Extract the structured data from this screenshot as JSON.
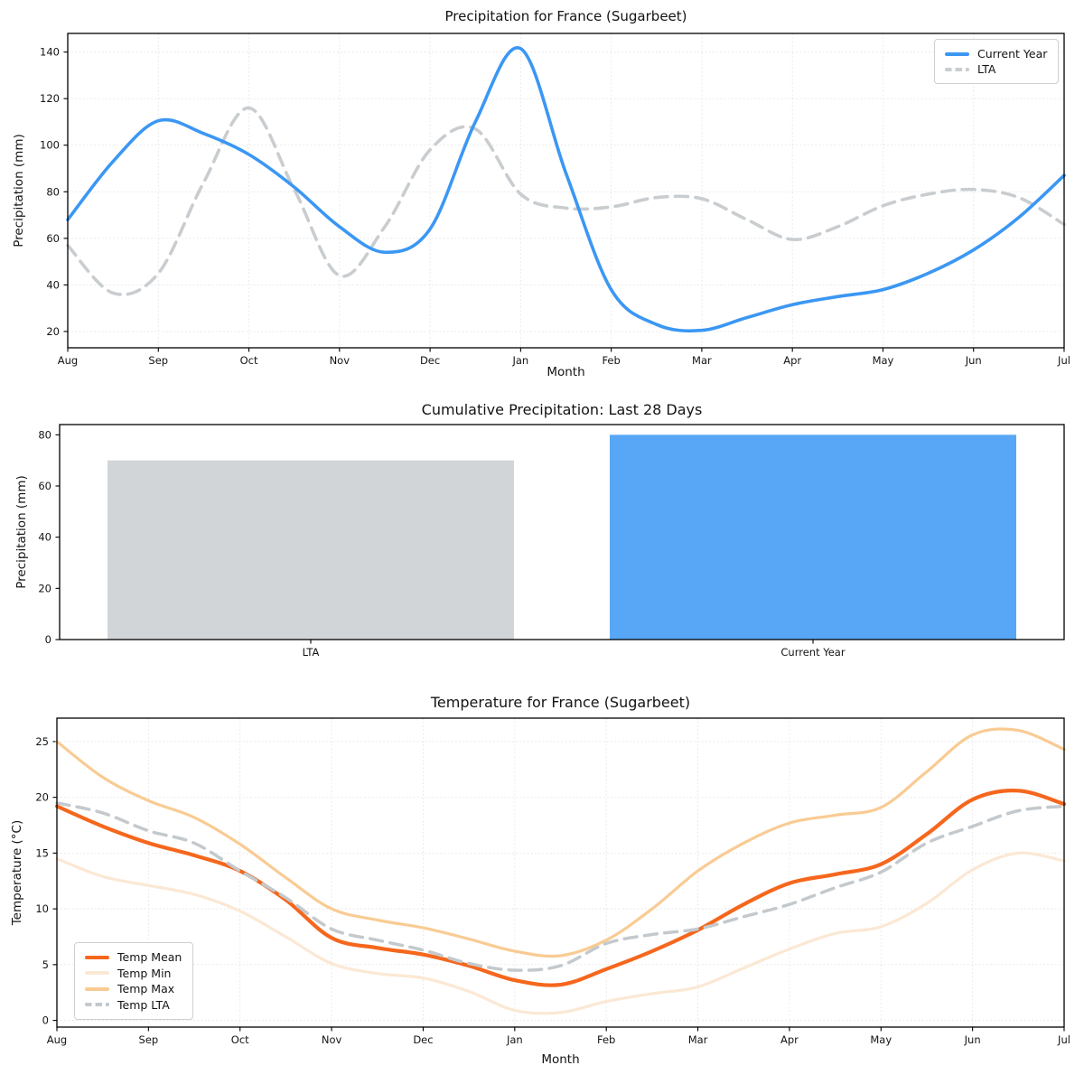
{
  "figure": {
    "background": "#ffffff",
    "text_color": "#141414",
    "grid_color": "#e3e3e3",
    "spine_color": "#000000"
  },
  "chart_data": [
    {
      "id": "precipitation-line-chart",
      "type": "line",
      "title": "Precipitation for France (Sugarbeet)",
      "xlabel": "Month",
      "ylabel": "Precipitation (mm)",
      "x_categories": [
        "Aug",
        "Sep",
        "Oct",
        "Nov",
        "Dec",
        "Jan",
        "Feb",
        "Mar",
        "Apr",
        "May",
        "Jun",
        "Jul"
      ],
      "x_step": 0.5,
      "ylim": [
        13,
        148
      ],
      "yticks": [
        20,
        40,
        60,
        80,
        100,
        120,
        140
      ],
      "grid": true,
      "legend_position": "upper right",
      "series": [
        {
          "name": "Current Year",
          "color": "#3b97f3",
          "style": "solid",
          "width": 3.6,
          "z": 2,
          "values": [
            68,
            93,
            110.5,
            105,
            96,
            82,
            65,
            54,
            64,
            110,
            141.5,
            88,
            38,
            23,
            20.5,
            26,
            31.5,
            35,
            38,
            45,
            55,
            69,
            87
          ]
        },
        {
          "name": "LTA",
          "color": "#c9cdd0",
          "style": "dashed",
          "width": 3.6,
          "z": 1,
          "values": [
            57,
            36.5,
            45,
            84,
            116,
            81,
            44,
            65,
            98,
            107,
            79,
            73,
            73.5,
            77.5,
            77,
            68,
            59.5,
            65,
            74,
            79,
            81,
            77.5,
            66
          ]
        }
      ]
    },
    {
      "id": "cumulative-precipitation-bar-chart",
      "type": "bar",
      "title": "Cumulative Precipitation: Last 28 Days",
      "ylabel": "Precipitation (mm)",
      "categories": [
        "LTA",
        "Current Year"
      ],
      "values": [
        70,
        80
      ],
      "colors": [
        "#d2d5d7",
        "#58a7f6"
      ],
      "ylim": [
        0,
        84
      ],
      "yticks": [
        0,
        20,
        40,
        60,
        80
      ],
      "grid": false
    },
    {
      "id": "temperature-line-chart",
      "type": "line",
      "title": "Temperature for France (Sugarbeet)",
      "xlabel": "Month",
      "ylabel": "Temperature (°C)",
      "x_categories": [
        "Aug",
        "Sep",
        "Oct",
        "Nov",
        "Dec",
        "Jan",
        "Feb",
        "Mar",
        "Apr",
        "May",
        "Jun",
        "Jul"
      ],
      "x_step": 0.5,
      "ylim": [
        -0.6,
        27.1
      ],
      "yticks": [
        0,
        5,
        10,
        15,
        20,
        25
      ],
      "grid": true,
      "legend_position": "lower left",
      "series": [
        {
          "name": "Temp Mean",
          "color": "#f5671d",
          "style": "solid",
          "width": 4.2,
          "z": 2,
          "values": [
            19.2,
            17.4,
            15.9,
            14.8,
            13.4,
            10.8,
            7.4,
            6.5,
            5.9,
            4.9,
            3.6,
            3.2,
            4.6,
            6.2,
            8.1,
            10.4,
            12.3,
            13.1,
            14.0,
            16.7,
            19.8,
            20.6,
            19.4
          ]
        },
        {
          "name": "Temp Min",
          "color": "#fbe8d4",
          "style": "solid",
          "width": 3.2,
          "z": 1,
          "values": [
            14.5,
            12.9,
            12.1,
            11.3,
            9.8,
            7.5,
            5.1,
            4.2,
            3.8,
            2.6,
            0.9,
            0.7,
            1.7,
            2.4,
            3.0,
            4.7,
            6.4,
            7.8,
            8.4,
            10.5,
            13.5,
            15.0,
            14.3
          ]
        },
        {
          "name": "Temp Max",
          "color": "#f9cb93",
          "style": "solid",
          "width": 3.2,
          "z": 1,
          "values": [
            25.0,
            21.8,
            19.7,
            18.2,
            15.8,
            12.8,
            10.0,
            9.0,
            8.3,
            7.3,
            6.2,
            5.8,
            7.2,
            10.0,
            13.4,
            15.9,
            17.7,
            18.4,
            19.1,
            22.3,
            25.6,
            26.0,
            24.3
          ]
        },
        {
          "name": "Temp LTA",
          "color": "#c3c9cd",
          "style": "dashed",
          "width": 3.5,
          "z": 3,
          "values": [
            19.5,
            18.6,
            17.0,
            15.9,
            13.4,
            11.0,
            8.2,
            7.2,
            6.3,
            5.1,
            4.5,
            4.9,
            6.9,
            7.7,
            8.2,
            9.3,
            10.4,
            11.9,
            13.3,
            15.9,
            17.4,
            18.8,
            19.2
          ]
        }
      ]
    }
  ]
}
